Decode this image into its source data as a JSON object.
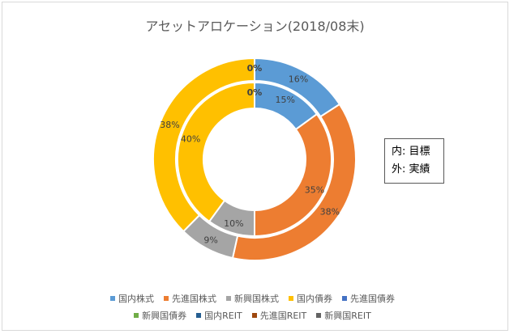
{
  "chart_data": {
    "type": "doughnut",
    "title": "アセットアロケーション(2018/08末)",
    "categories": [
      "国内株式",
      "先進国株式",
      "新興国株式",
      "国内債券",
      "先進国債券",
      "新興国債券",
      "国内REIT",
      "先進国REIT",
      "新興国REIT"
    ],
    "colors": [
      "#5b9bd5",
      "#ed7d31",
      "#a5a5a5",
      "#ffc000",
      "#4472c4",
      "#70ad47",
      "#255e91",
      "#9e480e",
      "#636363"
    ],
    "series": [
      {
        "name": "目標",
        "ring": "inner",
        "values": [
          15,
          35,
          10,
          40,
          0,
          0,
          0,
          0,
          0
        ],
        "labels": [
          "15%",
          "35%",
          "10%",
          "40%",
          "",
          "",
          "",
          "",
          "0%"
        ]
      },
      {
        "name": "実績",
        "ring": "outer",
        "values": [
          16,
          38,
          9,
          38,
          0,
          0,
          0,
          0,
          0
        ],
        "labels": [
          "16%",
          "38%",
          "9%",
          "38%",
          "",
          "",
          "",
          "",
          "0%"
        ]
      }
    ],
    "annotation": [
      "内: 目標",
      "外: 実績"
    ],
    "legend_position": "bottom"
  }
}
